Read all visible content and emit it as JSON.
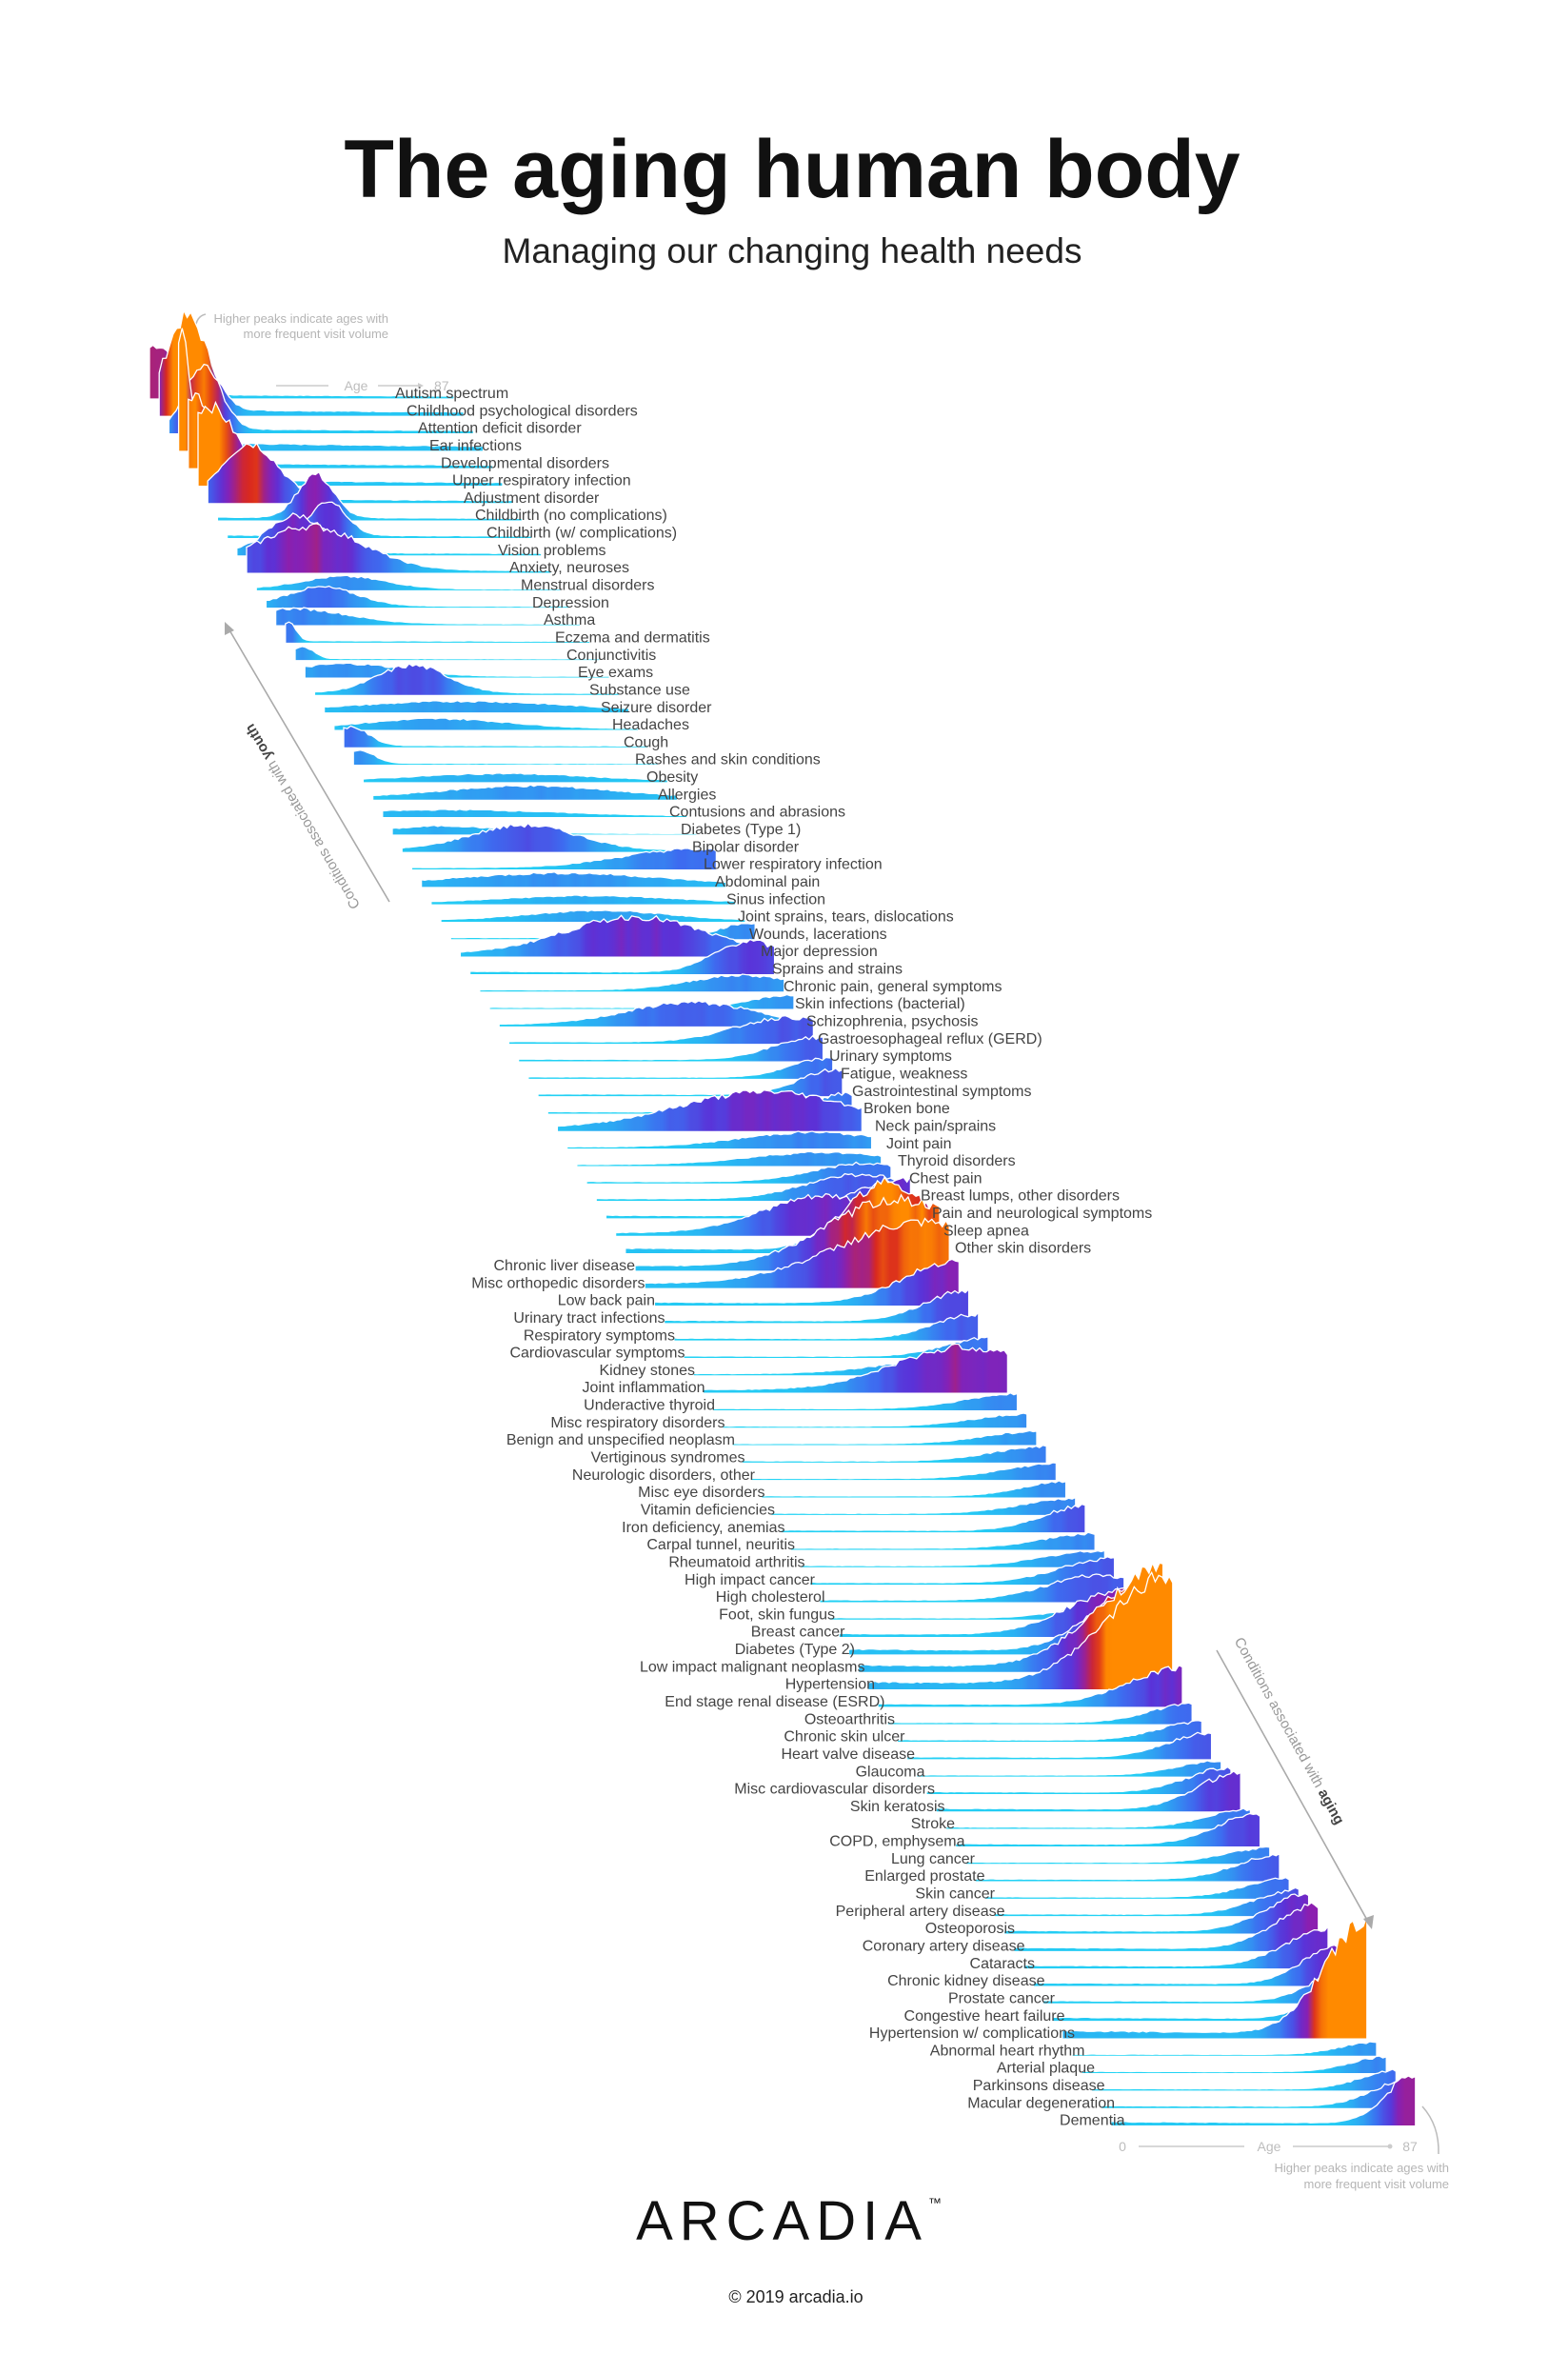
{
  "title": "The aging human body",
  "subtitle": "Managing our changing health needs",
  "logo": "ARCADIA",
  "logo_tm": "™",
  "copyright": "© 2019 arcadia.io",
  "colors": {
    "low": "#1ee0f5",
    "blue": "#3d6cf0",
    "indigo": "#5a32d8",
    "purple": "#8b1fb0",
    "red": "#d9281e",
    "high": "#ff8a00",
    "text": "#444444",
    "muted": "#b5b5b5"
  },
  "chart_data": {
    "type": "ridgeline",
    "x_axis": {
      "label": "Age",
      "start_label": "0",
      "end_label": "87",
      "range": [
        0,
        87
      ]
    },
    "note": [
      "Higher peaks indicate ages with",
      "more frequent visit volume"
    ],
    "youth_arrow": {
      "prefix": "Conditions associated with ",
      "bold": "youth"
    },
    "aging_arrow": {
      "prefix": "Conditions associated with ",
      "bold": "aging"
    },
    "conditions": [
      {
        "name": "Autism spectrum",
        "peak_age": 2,
        "peak": 0.4,
        "spread": 6
      },
      {
        "name": "Childhood psychological disorders",
        "peak_age": 8,
        "peak": 0.75,
        "spread": 6
      },
      {
        "name": "Attention deficit disorder",
        "peak_age": 10,
        "peak": 0.5,
        "spread": 5
      },
      {
        "name": "Ear infections",
        "peak_age": 1,
        "peak": 0.95,
        "spread": 2
      },
      {
        "name": "Developmental disorders",
        "peak_age": 2,
        "peak": 0.55,
        "spread": 5
      },
      {
        "name": "Upper respiratory infection",
        "peak_age": 3,
        "peak": 0.6,
        "spread": 8
      },
      {
        "name": "Adjustment disorder",
        "peak_age": 12,
        "peak": 0.45,
        "spread": 8
      },
      {
        "name": "Childbirth (no complications)",
        "peak_age": 28,
        "peak": 0.35,
        "spread": 5
      },
      {
        "name": "Childbirth (w/ complications)",
        "peak_age": 29,
        "peak": 0.28,
        "spread": 5
      },
      {
        "name": "Vision problems",
        "peak_age": 17,
        "peak": 0.3,
        "spread": 8
      },
      {
        "name": "Anxiety, neuroses",
        "peak_age": 18,
        "peak": 0.35,
        "spread": 15
      },
      {
        "name": "Menstrual disorders",
        "peak_age": 25,
        "peak": 0.1,
        "spread": 12
      },
      {
        "name": "Depression",
        "peak_age": 16,
        "peak": 0.15,
        "spread": 10
      },
      {
        "name": "Asthma",
        "peak_age": 5,
        "peak": 0.12,
        "spread": 15
      },
      {
        "name": "Eczema and dermatitis",
        "peak_age": 1,
        "peak": 0.15,
        "spread": 2
      },
      {
        "name": "Conjunctivitis",
        "peak_age": 2,
        "peak": 0.1,
        "spread": 3
      },
      {
        "name": "Eye exams",
        "peak_age": 12,
        "peak": 0.1,
        "spread": 15
      },
      {
        "name": "Substance use",
        "peak_age": 28,
        "peak": 0.22,
        "spread": 10
      },
      {
        "name": "Seizure disorder",
        "peak_age": 40,
        "peak": 0.08,
        "spread": 30
      },
      {
        "name": "Headaches",
        "peak_age": 30,
        "peak": 0.08,
        "spread": 20
      },
      {
        "name": "Cough",
        "peak_age": 2,
        "peak": 0.15,
        "spread": 5
      },
      {
        "name": "Rashes and skin conditions",
        "peak_age": 2,
        "peak": 0.1,
        "spread": 4
      },
      {
        "name": "Obesity",
        "peak_age": 40,
        "peak": 0.06,
        "spread": 25
      },
      {
        "name": "Allergies",
        "peak_age": 45,
        "peak": 0.1,
        "spread": 25
      },
      {
        "name": "Contusions and abrasions",
        "peak_age": 20,
        "peak": 0.05,
        "spread": 30
      },
      {
        "name": "Diabetes (Type 1)",
        "peak_age": 15,
        "peak": 0.06,
        "spread": 15
      },
      {
        "name": "Bipolar disorder",
        "peak_age": 35,
        "peak": 0.2,
        "spread": 15
      },
      {
        "name": "Lower respiratory infection",
        "peak_age": 80,
        "peak": 0.15,
        "spread": 20
      },
      {
        "name": "Abdominal pain",
        "peak_age": 40,
        "peak": 0.1,
        "spread": 30
      },
      {
        "name": "Sinus infection",
        "peak_age": 45,
        "peak": 0.06,
        "spread": 25
      },
      {
        "name": "Joint sprains, tears, dislocations",
        "peak_age": 45,
        "peak": 0.08,
        "spread": 20
      },
      {
        "name": "Wounds, lacerations",
        "peak_age": 85,
        "peak": 0.12,
        "spread": 8
      },
      {
        "name": "Major depression",
        "peak_age": 50,
        "peak": 0.3,
        "spread": 20
      },
      {
        "name": "Sprains and strains",
        "peak_age": 80,
        "peak": 0.25,
        "spread": 10
      },
      {
        "name": "Chronic pain, general symptoms",
        "peak_age": 75,
        "peak": 0.12,
        "spread": 15
      },
      {
        "name": "Skin infections (bacterial)",
        "peak_age": 85,
        "peak": 0.1,
        "spread": 10
      },
      {
        "name": "Schizophrenia, psychosis",
        "peak_age": 55,
        "peak": 0.18,
        "spread": 18
      },
      {
        "name": "Gastroesophageal reflux (GERD)",
        "peak_age": 80,
        "peak": 0.2,
        "spread": 15
      },
      {
        "name": "Urinary symptoms",
        "peak_age": 85,
        "peak": 0.18,
        "spread": 12
      },
      {
        "name": "Fatigue, weakness",
        "peak_age": 85,
        "peak": 0.15,
        "spread": 10
      },
      {
        "name": "Gastrointestinal symptoms",
        "peak_age": 85,
        "peak": 0.2,
        "spread": 10
      },
      {
        "name": "Broken bone",
        "peak_age": 85,
        "peak": 0.15,
        "spread": 8
      },
      {
        "name": "Neck pain/sprains",
        "peak_age": 60,
        "peak": 0.3,
        "spread": 25
      },
      {
        "name": "Joint pain",
        "peak_age": 70,
        "peak": 0.12,
        "spread": 20
      },
      {
        "name": "Thyroid disorders",
        "peak_age": 70,
        "peak": 0.1,
        "spread": 20
      },
      {
        "name": "Chest pain",
        "peak_age": 80,
        "peak": 0.15,
        "spread": 15
      },
      {
        "name": "Breast lumps, other disorders",
        "peak_age": 75,
        "peak": 0.2,
        "spread": 15
      },
      {
        "name": "Pain and neurological symptoms",
        "peak_age": 85,
        "peak": 0.3,
        "spread": 15
      },
      {
        "name": "Sleep apnea",
        "peak_age": 60,
        "peak": 0.3,
        "spread": 18
      },
      {
        "name": "Other skin disorders",
        "peak_age": 75,
        "peak": 0.55,
        "spread": 12
      },
      {
        "name": "Chronic liver disease",
        "peak_age": 75,
        "peak": 0.55,
        "spread": 20
      },
      {
        "name": "Misc orthopedic disorders",
        "peak_age": 80,
        "peak": 0.5,
        "spread": 25
      },
      {
        "name": "Low back pain",
        "peak_age": 87,
        "peak": 0.35,
        "spread": 15
      },
      {
        "name": "Urinary tract infections",
        "peak_age": 87,
        "peak": 0.25,
        "spread": 12
      },
      {
        "name": "Respiratory symptoms",
        "peak_age": 87,
        "peak": 0.2,
        "spread": 12
      },
      {
        "name": "Cardiovascular symptoms",
        "peak_age": 87,
        "peak": 0.15,
        "spread": 12
      },
      {
        "name": "Kidney stones",
        "peak_age": 75,
        "peak": 0.12,
        "spread": 20
      },
      {
        "name": "Joint inflammation",
        "peak_age": 75,
        "peak": 0.35,
        "spread": 20
      },
      {
        "name": "Underactive thyroid",
        "peak_age": 87,
        "peak": 0.12,
        "spread": 15
      },
      {
        "name": "Misc respiratory disorders",
        "peak_age": 87,
        "peak": 0.1,
        "spread": 15
      },
      {
        "name": "Benign and unspecified neoplasm",
        "peak_age": 87,
        "peak": 0.1,
        "spread": 15
      },
      {
        "name": "Vertiginous syndromes",
        "peak_age": 87,
        "peak": 0.12,
        "spread": 15
      },
      {
        "name": "Neurologic disorders, other",
        "peak_age": 87,
        "peak": 0.12,
        "spread": 15
      },
      {
        "name": "Misc eye disorders",
        "peak_age": 87,
        "peak": 0.12,
        "spread": 12
      },
      {
        "name": "Vitamin deficiencies",
        "peak_age": 87,
        "peak": 0.12,
        "spread": 15
      },
      {
        "name": "Iron deficiency, anemias",
        "peak_age": 87,
        "peak": 0.2,
        "spread": 12
      },
      {
        "name": "Carpal tunnel, neuritis",
        "peak_age": 87,
        "peak": 0.12,
        "spread": 15
      },
      {
        "name": "Rheumatoid arthritis",
        "peak_age": 85,
        "peak": 0.12,
        "spread": 15
      },
      {
        "name": "High impact cancer",
        "peak_age": 87,
        "peak": 0.2,
        "spread": 15
      },
      {
        "name": "High cholesterol",
        "peak_age": 80,
        "peak": 0.2,
        "spread": 15
      },
      {
        "name": "Foot, skin fungus",
        "peak_age": 87,
        "peak": 0.15,
        "spread": 15
      },
      {
        "name": "Breast cancer",
        "peak_age": 80,
        "peak": 0.35,
        "spread": 15
      },
      {
        "name": "Diabetes (Type 2)",
        "peak_age": 87,
        "peak": 0.6,
        "spread": 15
      },
      {
        "name": "Low impact malignant neoplasms",
        "peak_age": 87,
        "peak": 0.8,
        "spread": 18
      },
      {
        "name": "Hypertension",
        "peak_age": 87,
        "peak": 0.9,
        "spread": 18
      },
      {
        "name": "End stage renal disease (ESRD)",
        "peak_age": 87,
        "peak": 0.3,
        "spread": 15
      },
      {
        "name": "Osteoarthritis",
        "peak_age": 87,
        "peak": 0.15,
        "spread": 12
      },
      {
        "name": "Chronic skin ulcer",
        "peak_age": 87,
        "peak": 0.15,
        "spread": 12
      },
      {
        "name": "Heart valve disease",
        "peak_age": 87,
        "peak": 0.2,
        "spread": 12
      },
      {
        "name": "Glaucoma",
        "peak_age": 87,
        "peak": 0.12,
        "spread": 12
      },
      {
        "name": "Misc cardiovascular disorders",
        "peak_age": 87,
        "peak": 0.2,
        "spread": 12
      },
      {
        "name": "Skin keratosis",
        "peak_age": 87,
        "peak": 0.3,
        "spread": 12
      },
      {
        "name": "Stroke",
        "peak_age": 87,
        "peak": 0.15,
        "spread": 12
      },
      {
        "name": "COPD, emphysema",
        "peak_age": 87,
        "peak": 0.25,
        "spread": 12
      },
      {
        "name": "Lung cancer",
        "peak_age": 87,
        "peak": 0.12,
        "spread": 12
      },
      {
        "name": "Enlarged prostate",
        "peak_age": 87,
        "peak": 0.2,
        "spread": 12
      },
      {
        "name": "Skin cancer",
        "peak_age": 87,
        "peak": 0.15,
        "spread": 12
      },
      {
        "name": "Peripheral artery disease",
        "peak_age": 87,
        "peak": 0.2,
        "spread": 12
      },
      {
        "name": "Osteoporosis",
        "peak_age": 87,
        "peak": 0.3,
        "spread": 12
      },
      {
        "name": "Coronary artery disease",
        "peak_age": 87,
        "peak": 0.35,
        "spread": 12
      },
      {
        "name": "Cataracts",
        "peak_age": 87,
        "peak": 0.3,
        "spread": 12
      },
      {
        "name": "Chronic kidney disease",
        "peak_age": 87,
        "peak": 0.3,
        "spread": 10
      },
      {
        "name": "Prostate cancer",
        "peak_age": 87,
        "peak": 0.25,
        "spread": 10
      },
      {
        "name": "Congestive heart failure",
        "peak_age": 87,
        "peak": 0.35,
        "spread": 10
      },
      {
        "name": "Hypertension w/ complications",
        "peak_age": 87,
        "peak": 0.9,
        "spread": 12
      },
      {
        "name": "Abnormal heart rhythm",
        "peak_age": 87,
        "peak": 0.1,
        "spread": 10
      },
      {
        "name": "Arterial plaque",
        "peak_age": 87,
        "peak": 0.12,
        "spread": 10
      },
      {
        "name": "Parkinsons disease",
        "peak_age": 87,
        "peak": 0.15,
        "spread": 10
      },
      {
        "name": "Macular degeneration",
        "peak_age": 87,
        "peak": 0.2,
        "spread": 10
      },
      {
        "name": "Dementia",
        "peak_age": 87,
        "peak": 0.4,
        "spread": 8
      }
    ]
  }
}
